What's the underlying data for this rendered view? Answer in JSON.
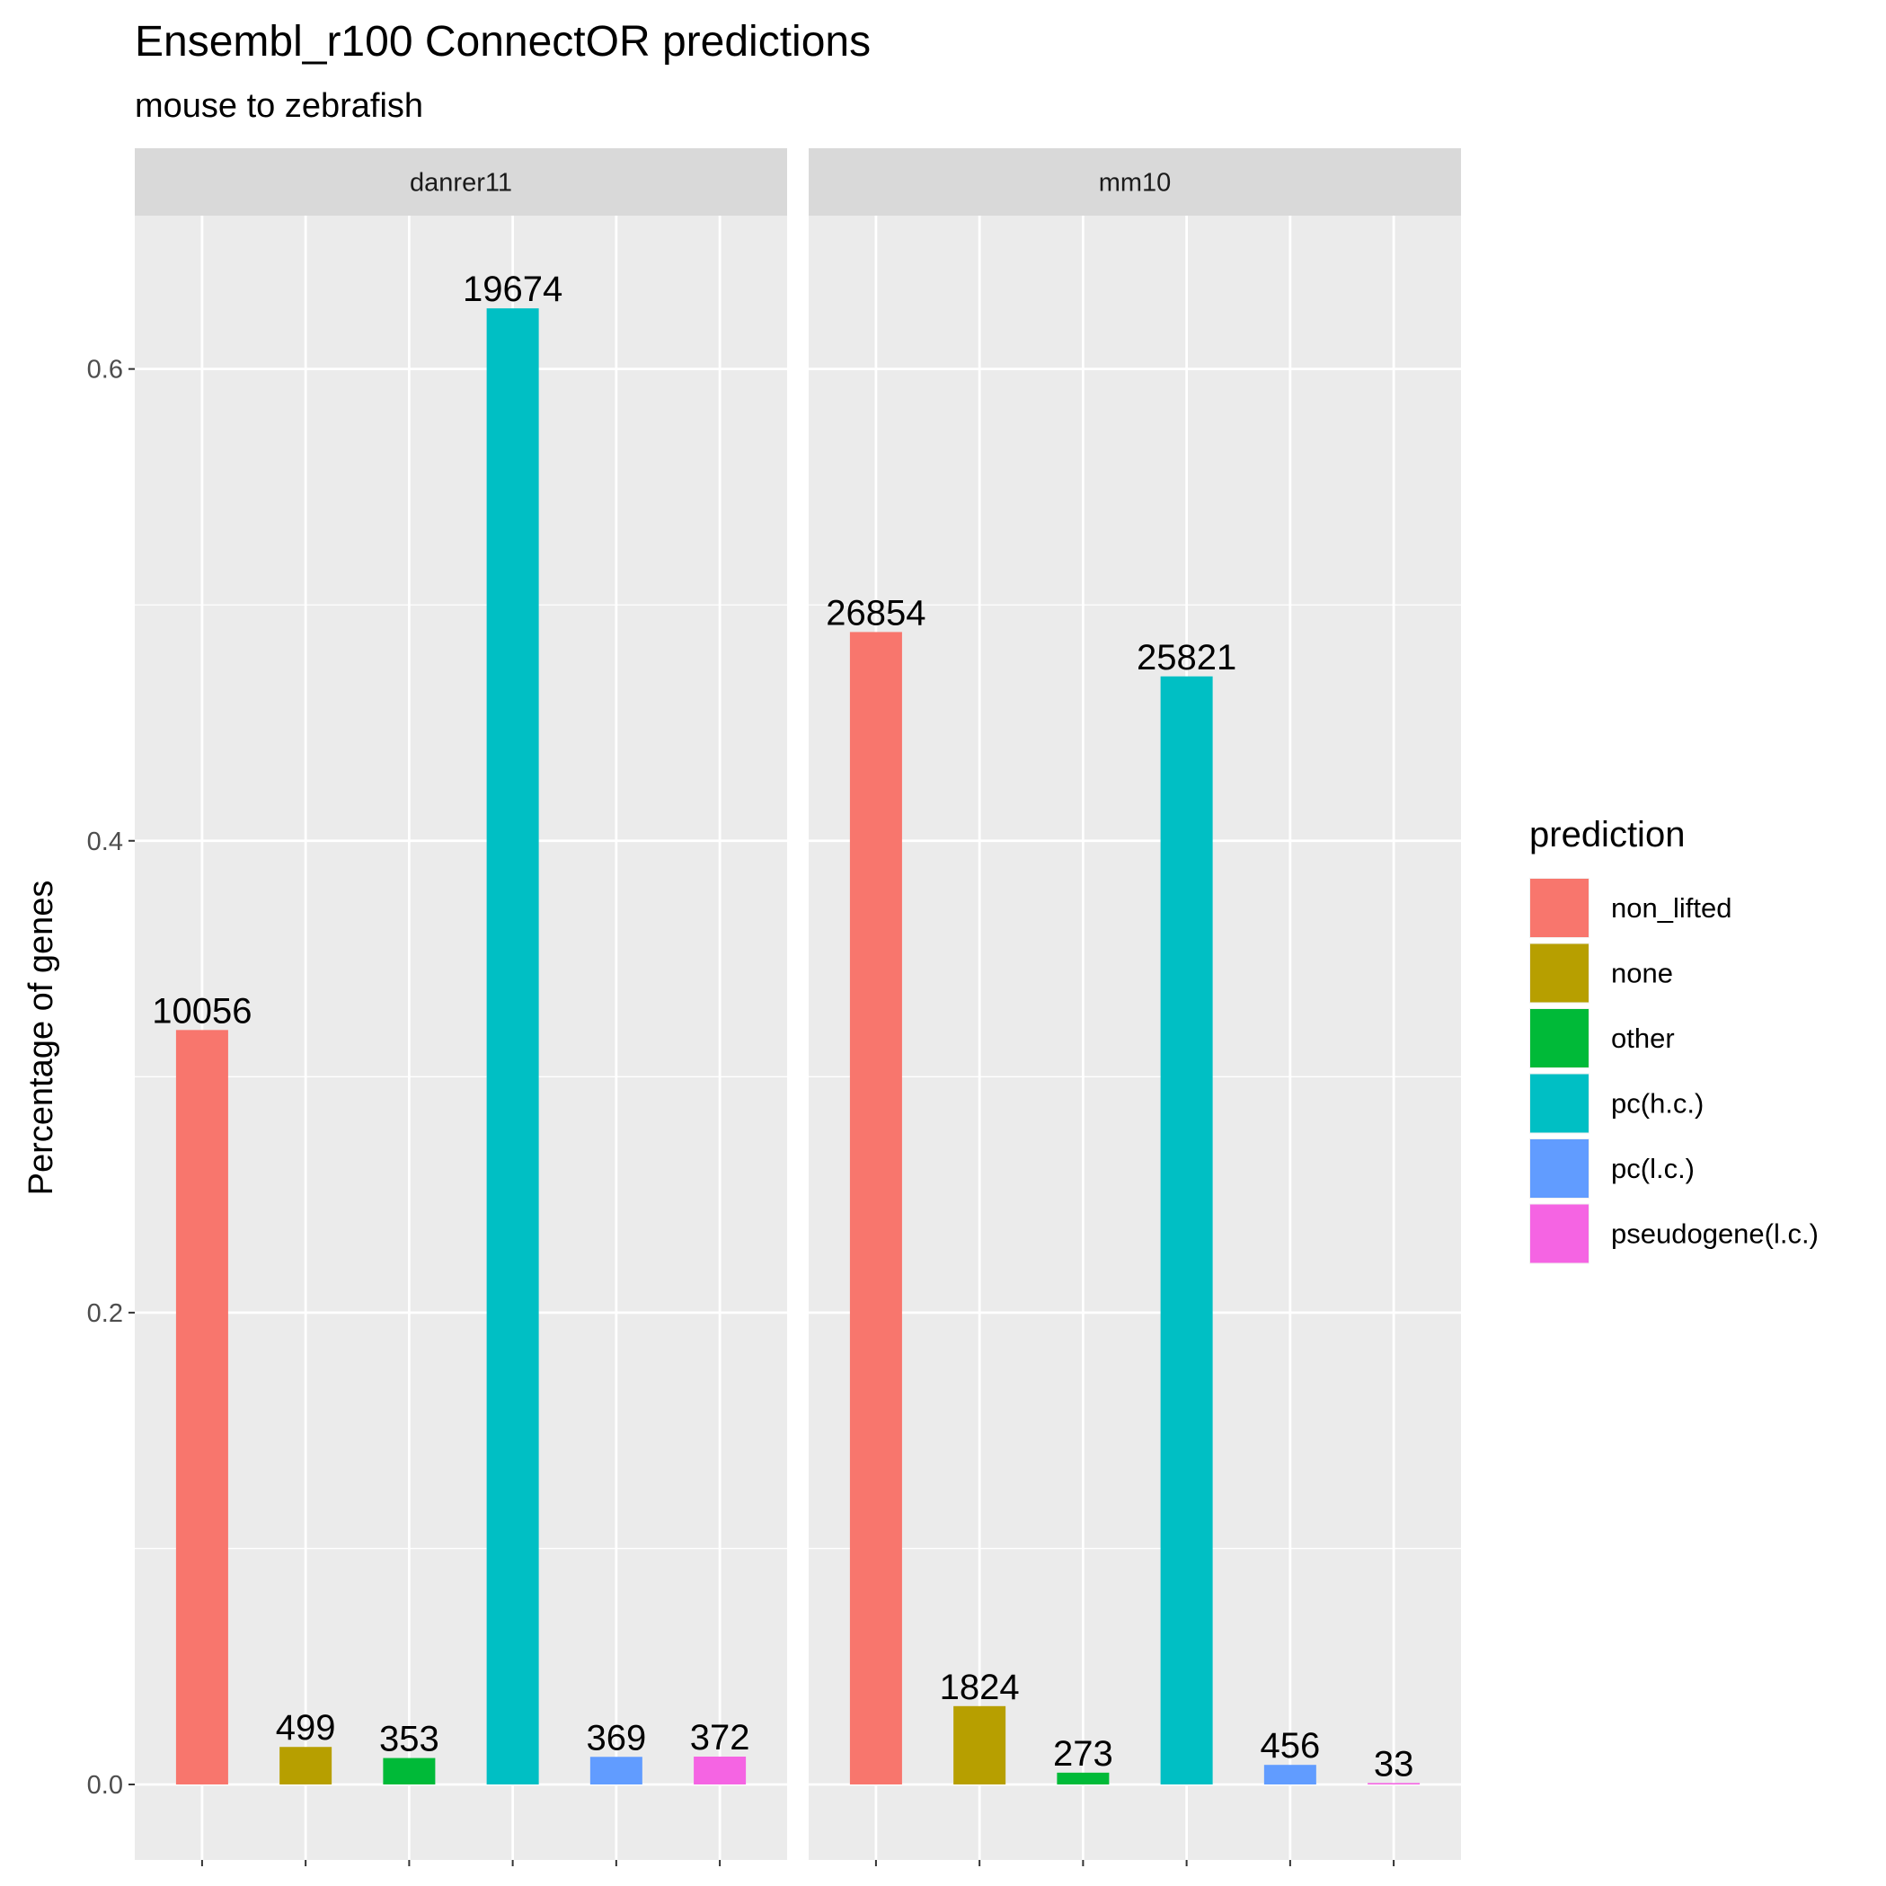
{
  "chart_data": {
    "type": "bar",
    "title": "Ensembl_r100 ConnectOR predictions",
    "subtitle": "mouse to zebrafish",
    "xlabel": "",
    "ylabel": "Percentage of genes",
    "ylim": [
      -0.032,
      0.665
    ],
    "y_ticks": [
      0.0,
      0.2,
      0.4,
      0.6
    ],
    "y_tick_labels": [
      "0.0",
      "0.2",
      "0.4",
      "0.6"
    ],
    "grid": true,
    "legend": {
      "title": "prediction",
      "position": "right"
    },
    "categories": [
      "non_lifted",
      "none",
      "other",
      "pc(h.c.)",
      "pc(l.c.)",
      "pseudogene(l.c.)"
    ],
    "colors": [
      "#F8766D",
      "#B79F00",
      "#00BA38",
      "#00BFC4",
      "#619CFF",
      "#F564E3"
    ],
    "facets": [
      {
        "name": "danrer11",
        "values": [
          0.3198,
          0.0159,
          0.0112,
          0.6257,
          0.0117,
          0.0118
        ],
        "labels": [
          "10056",
          "499",
          "353",
          "19674",
          "369",
          "372"
        ]
      },
      {
        "name": "mm10",
        "values": [
          0.4885,
          0.0332,
          0.005,
          0.4697,
          0.0083,
          0.0006
        ],
        "labels": [
          "26854",
          "1824",
          "273",
          "25821",
          "456",
          "33"
        ]
      }
    ]
  }
}
